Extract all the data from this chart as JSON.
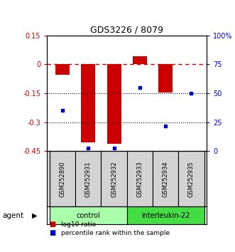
{
  "title": "GDS3226 / 8079",
  "samples": [
    "GSM252890",
    "GSM252931",
    "GSM252932",
    "GSM252933",
    "GSM252934",
    "GSM252935"
  ],
  "log10_ratio": [
    -0.055,
    -0.405,
    -0.41,
    0.042,
    -0.145,
    0.0
  ],
  "percentile_rank": [
    35,
    3,
    3,
    55,
    22,
    50
  ],
  "ylim_left": [
    -0.45,
    0.15
  ],
  "ylim_right": [
    0,
    100
  ],
  "yticks_left": [
    0.15,
    0,
    -0.15,
    -0.3,
    -0.45
  ],
  "yticks_right": [
    100,
    75,
    50,
    25,
    0
  ],
  "groups": [
    {
      "label": "control",
      "indices": [
        0,
        1,
        2
      ],
      "color": "#aaffaa"
    },
    {
      "label": "interleukin-22",
      "indices": [
        3,
        4,
        5
      ],
      "color": "#44dd44"
    }
  ],
  "bar_color": "#CC0000",
  "point_color": "#0000CC",
  "hline_color": "#CC0000",
  "grid_color": "#000000",
  "agent_label": "agent",
  "legend_bar_label": "log10 ratio",
  "legend_point_label": "percentile rank within the sample",
  "bar_width": 0.55
}
